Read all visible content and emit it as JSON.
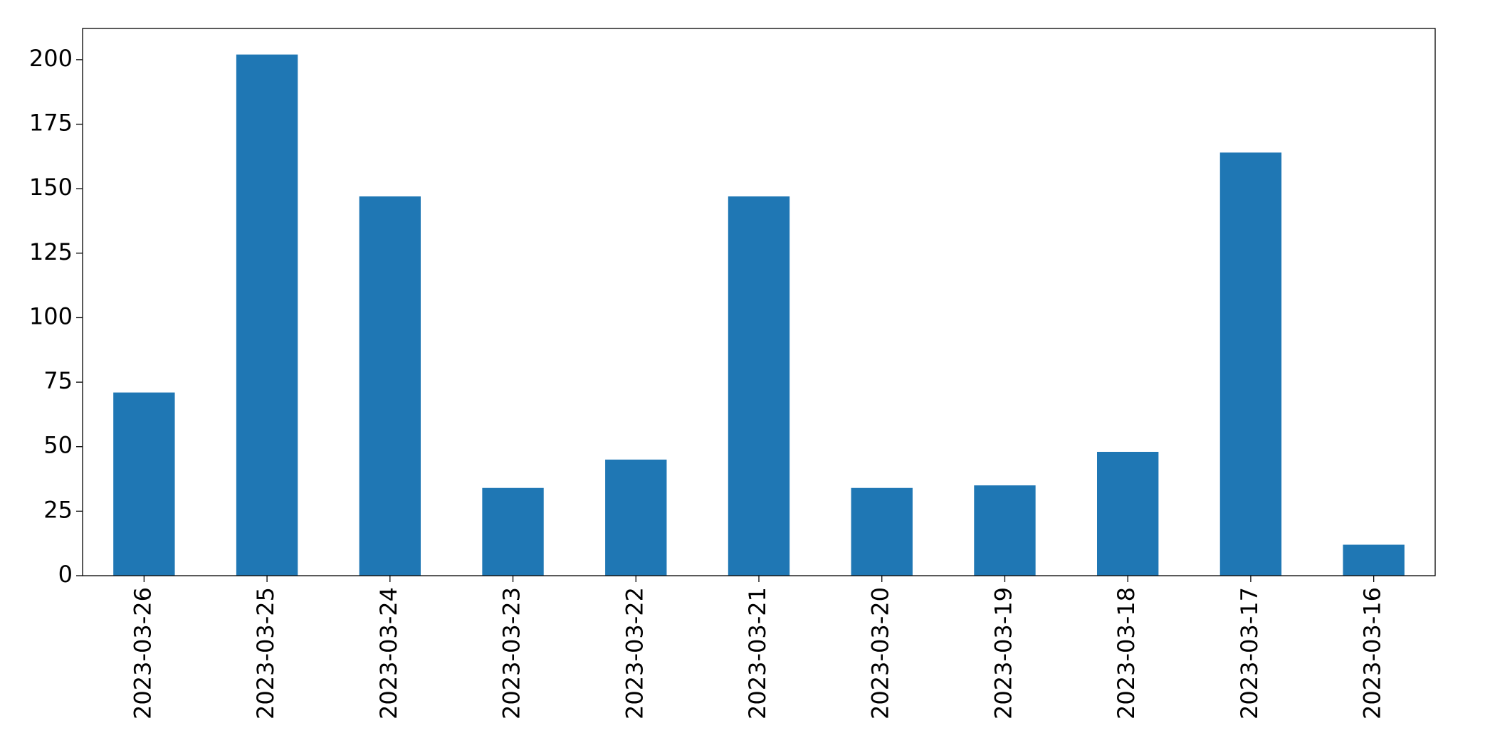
{
  "chart_data": {
    "type": "bar",
    "categories": [
      "2023-03-26",
      "2023-03-25",
      "2023-03-24",
      "2023-03-23",
      "2023-03-22",
      "2023-03-21",
      "2023-03-20",
      "2023-03-19",
      "2023-03-18",
      "2023-03-17",
      "2023-03-16"
    ],
    "values": [
      71,
      202,
      147,
      34,
      45,
      147,
      34,
      35,
      48,
      164,
      12
    ],
    "color": "#1f77b4",
    "ylim": [
      0,
      212.1
    ],
    "yticks": [
      0,
      25,
      50,
      75,
      100,
      125,
      150,
      175,
      200
    ],
    "grid": false
  }
}
